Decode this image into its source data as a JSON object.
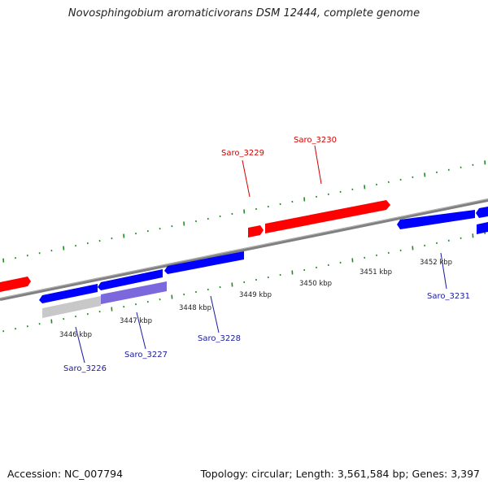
{
  "title": "Novosphingobium aromaticivorans DSM 12444, complete genome",
  "footer": {
    "accession": "Accession: NC_007794",
    "topology": "Topology: circular; Length: 3,561,584 bp; Genes: 3,397"
  },
  "colors": {
    "forward_gene": "#ff0000",
    "reverse_gene": "#0000ff",
    "reverse_gene_light": "#7b68dd",
    "other_feature": "#c8c8c8",
    "backbone": "#808080",
    "tick": "#228b22",
    "forward_label": "#d40000",
    "reverse_label": "#1a1aa0"
  },
  "kbp_labels": [
    "3446 kbp",
    "3447 kbp",
    "3448 kbp",
    "3449 kbp",
    "3450 kbp",
    "3451 kbp",
    "3452 kbp"
  ],
  "gene_labels": {
    "forward": [
      "Saro_3229",
      "Saro_3230"
    ],
    "reverse": [
      "Saro_3226",
      "Saro_3227",
      "Saro_3228",
      "Saro_3231"
    ]
  }
}
